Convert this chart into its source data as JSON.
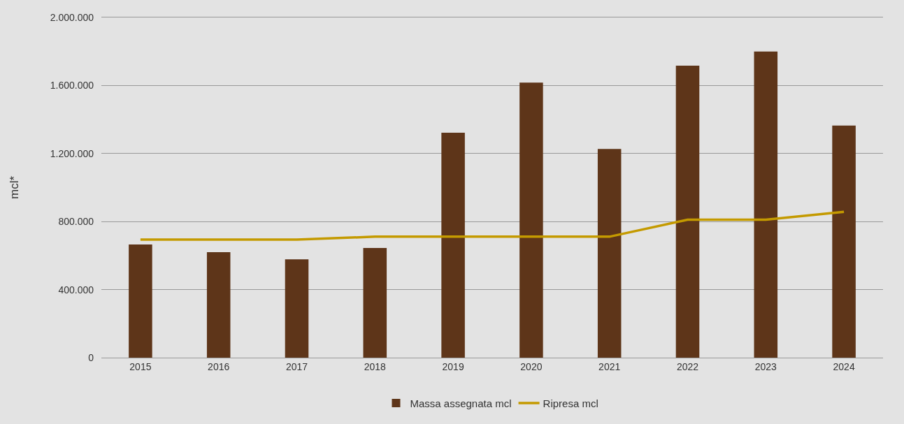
{
  "chart_data": {
    "type": "bar",
    "ylabel": "mcl*",
    "categories": [
      "2015",
      "2016",
      "2017",
      "2018",
      "2019",
      "2020",
      "2021",
      "2022",
      "2023",
      "2024"
    ],
    "series": [
      {
        "name": "Massa assegnata mcl",
        "color": "#5e3519",
        "values": [
          665000,
          620000,
          578000,
          645000,
          1322000,
          1617000,
          1227000,
          1717000,
          1800000,
          1364000
        ]
      },
      {
        "name": "Ripresa mcl",
        "color": "#c49a00",
        "type": "line",
        "marker": "none",
        "values": [
          694000,
          694000,
          694000,
          711000,
          711000,
          711000,
          711000,
          811000,
          811000,
          857000
        ]
      }
    ],
    "ylim": [
      0,
      2000000
    ],
    "yticks": [
      {
        "value": 0,
        "label": "0"
      },
      {
        "value": 400000,
        "label": "400.000"
      },
      {
        "value": 800000,
        "label": "800.000"
      },
      {
        "value": 1200000,
        "label": "1.200.000"
      },
      {
        "value": 1600000,
        "label": "1.600.000"
      },
      {
        "value": 2000000,
        "label": "2.000.000"
      }
    ],
    "grid": "y",
    "legend": "bottom"
  }
}
